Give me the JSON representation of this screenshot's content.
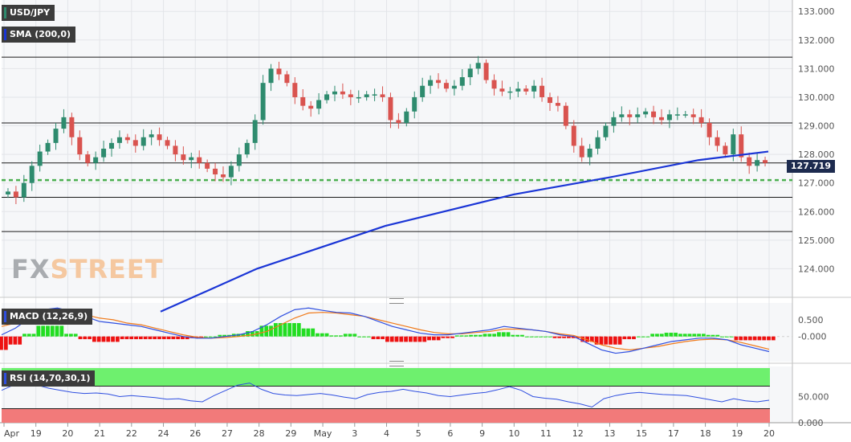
{
  "main_panel": {
    "symbol": "USD/JPY",
    "indicator": "SMA (200,0)",
    "last_price": "127.719"
  },
  "macd_panel": {
    "title": "MACD (12,26,9)"
  },
  "rsi_panel": {
    "title": "RSI (14,70,30,1)"
  },
  "watermark": {
    "fx": "FX",
    "street": "STREET"
  },
  "colors": {
    "up_candle": "#2e8b6e",
    "down_candle": "#d9534f",
    "sma": "#1a35d6",
    "support_dotted": "#4caf50",
    "macd_line": "#2f4fe0",
    "signal_line": "#f07a1a",
    "hist_pos": "#22dd22",
    "hist_neg": "#ee1111",
    "rsi_line": "#2f4fe0",
    "rsi_overbought": "#6ef06e",
    "rsi_oversold": "#f27a7a"
  },
  "chart_data": {
    "type": "candlestick",
    "title": "USD/JPY",
    "x_labels": [
      "Apr",
      "19",
      "20",
      "21",
      "22",
      "24",
      "26",
      "27",
      "28",
      "29",
      "May",
      "3",
      "4",
      "5",
      "6",
      "9",
      "10",
      "11",
      "12",
      "13",
      "15",
      "17",
      "18",
      "19",
      "20"
    ],
    "price_axis": {
      "ticks": [
        "133.000",
        "132.000",
        "131.000",
        "130.000",
        "129.000",
        "128.000",
        "127.000",
        "126.000",
        "125.000",
        "124.000"
      ],
      "ylim": [
        123.0,
        133.4
      ]
    },
    "horizontal_levels": [
      131.4,
      129.1,
      127.7,
      126.5,
      125.3
    ],
    "dotted_support": 127.1,
    "price_path": [
      126.6,
      126.7,
      126.5,
      127.0,
      127.6,
      128.1,
      128.4,
      128.9,
      129.3,
      128.6,
      128.0,
      127.7,
      127.9,
      128.2,
      128.4,
      128.6,
      128.5,
      128.3,
      128.6,
      128.7,
      128.5,
      128.3,
      128.0,
      127.8,
      127.9,
      127.7,
      127.5,
      127.3,
      127.2,
      127.6,
      128.0,
      128.4,
      129.2,
      130.5,
      131.0,
      130.8,
      130.5,
      130.0,
      129.7,
      129.6,
      129.9,
      130.1,
      130.2,
      130.1,
      130.0,
      130.0,
      130.1,
      130.1,
      130.0,
      129.2,
      129.1,
      129.5,
      130.0,
      130.4,
      130.6,
      130.5,
      130.3,
      130.4,
      130.7,
      131.0,
      131.2,
      130.6,
      130.3,
      130.2,
      130.2,
      130.3,
      130.2,
      130.4,
      130.0,
      129.8,
      129.7,
      129.0,
      128.3,
      127.9,
      128.2,
      128.6,
      129.0,
      129.3,
      129.4,
      129.3,
      129.4,
      129.5,
      129.3,
      129.2,
      129.4,
      129.4,
      129.4,
      129.3,
      129.1,
      128.6,
      128.3,
      128.0,
      128.7,
      127.9,
      127.6,
      127.8,
      127.7
    ],
    "sma200": [
      [
        200,
        122.5
      ],
      [
        320,
        124.0
      ],
      [
        480,
        125.5
      ],
      [
        640,
        126.6
      ],
      [
        760,
        127.2
      ],
      [
        870,
        127.8
      ],
      [
        957,
        128.1
      ]
    ],
    "macd_axis": {
      "ticks": [
        "0.500",
        "-0.000"
      ],
      "ylim": [
        -0.75,
        1.0
      ]
    },
    "macd_line": [
      0.05,
      0.25,
      0.55,
      0.8,
      0.85,
      0.75,
      0.6,
      0.45,
      0.4,
      0.35,
      0.3,
      0.2,
      0.1,
      0.0,
      -0.05,
      -0.05,
      0.0,
      0.05,
      0.15,
      0.35,
      0.6,
      0.8,
      0.85,
      0.78,
      0.72,
      0.7,
      0.6,
      0.45,
      0.3,
      0.2,
      0.1,
      0.05,
      0.05,
      0.1,
      0.15,
      0.2,
      0.3,
      0.25,
      0.2,
      0.15,
      0.05,
      0.0,
      -0.2,
      -0.4,
      -0.5,
      -0.45,
      -0.35,
      -0.25,
      -0.15,
      -0.1,
      -0.05,
      -0.05,
      -0.1,
      -0.25,
      -0.35,
      -0.45
    ],
    "signal_line": [
      0.3,
      0.4,
      0.5,
      0.6,
      0.65,
      0.7,
      0.65,
      0.55,
      0.5,
      0.4,
      0.35,
      0.25,
      0.15,
      0.05,
      -0.02,
      -0.05,
      -0.03,
      0.0,
      0.05,
      0.15,
      0.35,
      0.55,
      0.7,
      0.72,
      0.7,
      0.65,
      0.6,
      0.5,
      0.4,
      0.3,
      0.2,
      0.12,
      0.08,
      0.08,
      0.12,
      0.15,
      0.22,
      0.22,
      0.2,
      0.15,
      0.08,
      0.03,
      -0.1,
      -0.25,
      -0.35,
      -0.4,
      -0.35,
      -0.3,
      -0.22,
      -0.15,
      -0.1,
      -0.08,
      -0.1,
      -0.18,
      -0.28,
      -0.38
    ],
    "rsi_axis": {
      "ticks": [
        "50.000",
        "0.000"
      ],
      "ylim": [
        0,
        100
      ],
      "overbought": 70,
      "oversold": 30
    },
    "rsi_line": [
      62,
      72,
      78,
      72,
      66,
      62,
      58,
      56,
      57,
      55,
      50,
      52,
      50,
      48,
      45,
      46,
      42,
      40,
      52,
      62,
      72,
      76,
      64,
      56,
      53,
      52,
      54,
      56,
      53,
      49,
      46,
      54,
      58,
      60,
      64,
      60,
      57,
      52,
      50,
      53,
      56,
      58,
      63,
      69,
      62,
      50,
      47,
      45,
      40,
      36,
      30,
      46,
      52,
      56,
      58,
      56,
      54,
      53,
      52,
      48,
      44,
      40,
      46,
      42,
      40,
      43
    ]
  }
}
